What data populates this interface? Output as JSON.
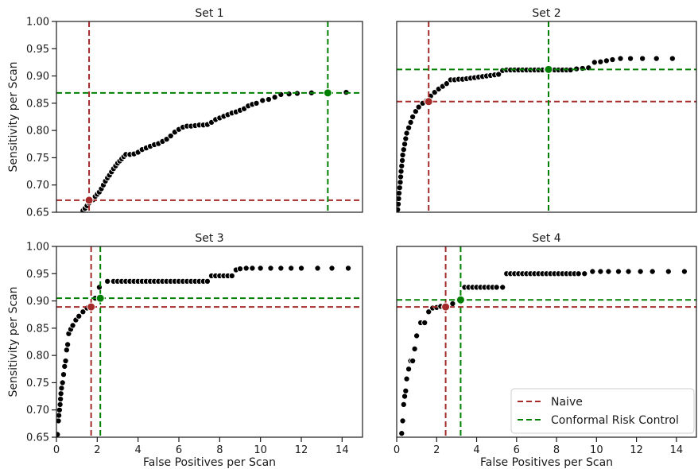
{
  "chart_data": [
    {
      "type": "scatter",
      "title": "Set 1",
      "ylabel": "Sensitivity per Scan",
      "xlabel": "",
      "xlim": [
        0,
        15
      ],
      "ylim": [
        0.65,
        1.0
      ],
      "xticks": [],
      "yticks": [
        "0.65",
        "0.70",
        "0.75",
        "0.80",
        "0.85",
        "0.90",
        "0.95",
        "1.00"
      ],
      "points": [
        [
          1.3,
          0.653
        ],
        [
          1.4,
          0.657
        ],
        [
          1.5,
          0.662
        ],
        [
          1.6,
          0.667
        ],
        [
          1.8,
          0.673
        ],
        [
          1.9,
          0.679
        ],
        [
          2.0,
          0.683
        ],
        [
          2.1,
          0.687
        ],
        [
          2.2,
          0.693
        ],
        [
          2.3,
          0.7
        ],
        [
          2.4,
          0.707
        ],
        [
          2.5,
          0.713
        ],
        [
          2.6,
          0.718
        ],
        [
          2.7,
          0.724
        ],
        [
          2.8,
          0.73
        ],
        [
          2.9,
          0.735
        ],
        [
          3.0,
          0.74
        ],
        [
          3.1,
          0.744
        ],
        [
          3.2,
          0.748
        ],
        [
          3.3,
          0.752
        ],
        [
          3.4,
          0.756
        ],
        [
          3.6,
          0.756
        ],
        [
          3.8,
          0.757
        ],
        [
          4.0,
          0.76
        ],
        [
          4.2,
          0.765
        ],
        [
          4.4,
          0.768
        ],
        [
          4.6,
          0.771
        ],
        [
          4.8,
          0.774
        ],
        [
          5.0,
          0.776
        ],
        [
          5.2,
          0.78
        ],
        [
          5.4,
          0.784
        ],
        [
          5.6,
          0.79
        ],
        [
          5.8,
          0.797
        ],
        [
          6.0,
          0.802
        ],
        [
          6.2,
          0.806
        ],
        [
          6.4,
          0.808
        ],
        [
          6.6,
          0.808
        ],
        [
          6.8,
          0.809
        ],
        [
          7.0,
          0.81
        ],
        [
          7.2,
          0.81
        ],
        [
          7.4,
          0.811
        ],
        [
          7.6,
          0.815
        ],
        [
          7.8,
          0.82
        ],
        [
          8.0,
          0.823
        ],
        [
          8.2,
          0.826
        ],
        [
          8.4,
          0.829
        ],
        [
          8.6,
          0.832
        ],
        [
          8.8,
          0.834
        ],
        [
          9.0,
          0.837
        ],
        [
          9.2,
          0.84
        ],
        [
          9.4,
          0.845
        ],
        [
          9.6,
          0.848
        ],
        [
          9.8,
          0.85
        ],
        [
          10.1,
          0.855
        ],
        [
          10.4,
          0.857
        ],
        [
          10.7,
          0.861
        ],
        [
          11.0,
          0.866
        ],
        [
          11.4,
          0.867
        ],
        [
          11.8,
          0.868
        ],
        [
          12.5,
          0.869
        ],
        [
          14.2,
          0.87
        ]
      ],
      "naive": {
        "x": 1.6,
        "y": 0.672
      },
      "crc": {
        "x": 13.3,
        "y": 0.869
      }
    },
    {
      "type": "scatter",
      "title": "Set 2",
      "ylabel": "",
      "xlabel": "",
      "xlim": [
        0,
        15
      ],
      "ylim": [
        0.65,
        1.0
      ],
      "xticks": [],
      "yticks": [],
      "points": [
        [
          0.05,
          0.655
        ],
        [
          0.08,
          0.665
        ],
        [
          0.1,
          0.675
        ],
        [
          0.12,
          0.685
        ],
        [
          0.15,
          0.695
        ],
        [
          0.18,
          0.705
        ],
        [
          0.2,
          0.715
        ],
        [
          0.22,
          0.725
        ],
        [
          0.25,
          0.735
        ],
        [
          0.28,
          0.745
        ],
        [
          0.3,
          0.755
        ],
        [
          0.35,
          0.765
        ],
        [
          0.4,
          0.775
        ],
        [
          0.45,
          0.785
        ],
        [
          0.5,
          0.795
        ],
        [
          0.6,
          0.805
        ],
        [
          0.7,
          0.815
        ],
        [
          0.8,
          0.825
        ],
        [
          0.95,
          0.835
        ],
        [
          1.1,
          0.843
        ],
        [
          1.3,
          0.85
        ],
        [
          1.5,
          0.855
        ],
        [
          1.7,
          0.863
        ],
        [
          1.9,
          0.87
        ],
        [
          2.1,
          0.876
        ],
        [
          2.3,
          0.881
        ],
        [
          2.5,
          0.886
        ],
        [
          2.7,
          0.893
        ],
        [
          2.9,
          0.893
        ],
        [
          3.1,
          0.894
        ],
        [
          3.3,
          0.894
        ],
        [
          3.5,
          0.895
        ],
        [
          3.7,
          0.896
        ],
        [
          3.9,
          0.897
        ],
        [
          4.1,
          0.898
        ],
        [
          4.3,
          0.899
        ],
        [
          4.5,
          0.9
        ],
        [
          4.7,
          0.901
        ],
        [
          4.9,
          0.902
        ],
        [
          5.1,
          0.903
        ],
        [
          5.3,
          0.91
        ],
        [
          5.5,
          0.911
        ],
        [
          5.7,
          0.911
        ],
        [
          5.9,
          0.911
        ],
        [
          6.1,
          0.911
        ],
        [
          6.3,
          0.911
        ],
        [
          6.5,
          0.911
        ],
        [
          6.7,
          0.911
        ],
        [
          6.9,
          0.911
        ],
        [
          7.1,
          0.911
        ],
        [
          7.3,
          0.911
        ],
        [
          7.5,
          0.911
        ],
        [
          7.7,
          0.911
        ],
        [
          7.9,
          0.911
        ],
        [
          8.1,
          0.911
        ],
        [
          8.3,
          0.911
        ],
        [
          8.5,
          0.911
        ],
        [
          8.7,
          0.911
        ],
        [
          9.0,
          0.913
        ],
        [
          9.3,
          0.914
        ],
        [
          9.6,
          0.915
        ],
        [
          9.9,
          0.925
        ],
        [
          10.2,
          0.926
        ],
        [
          10.5,
          0.928
        ],
        [
          10.8,
          0.93
        ],
        [
          11.2,
          0.932
        ],
        [
          11.7,
          0.932
        ],
        [
          12.3,
          0.932
        ],
        [
          13.0,
          0.932
        ],
        [
          13.8,
          0.932
        ]
      ],
      "naive": {
        "x": 1.6,
        "y": 0.853
      },
      "crc": {
        "x": 7.6,
        "y": 0.912
      }
    },
    {
      "type": "scatter",
      "title": "Set 3",
      "ylabel": "Sensitivity per Scan",
      "xlabel": "False Positives per Scan",
      "xlim": [
        0,
        15
      ],
      "ylim": [
        0.65,
        1.0
      ],
      "xticks": [
        "0",
        "2",
        "4",
        "6",
        "8",
        "10",
        "12",
        "14"
      ],
      "yticks": [
        "0.65",
        "0.70",
        "0.75",
        "0.80",
        "0.85",
        "0.90",
        "0.95",
        "1.00"
      ],
      "points": [
        [
          0.05,
          0.655
        ],
        [
          0.1,
          0.68
        ],
        [
          0.12,
          0.69
        ],
        [
          0.15,
          0.7
        ],
        [
          0.18,
          0.71
        ],
        [
          0.2,
          0.72
        ],
        [
          0.22,
          0.73
        ],
        [
          0.25,
          0.74
        ],
        [
          0.3,
          0.75
        ],
        [
          0.35,
          0.765
        ],
        [
          0.4,
          0.78
        ],
        [
          0.45,
          0.79
        ],
        [
          0.5,
          0.81
        ],
        [
          0.55,
          0.82
        ],
        [
          0.6,
          0.84
        ],
        [
          0.7,
          0.848
        ],
        [
          0.8,
          0.855
        ],
        [
          0.95,
          0.865
        ],
        [
          1.1,
          0.872
        ],
        [
          1.3,
          0.88
        ],
        [
          1.5,
          0.887
        ],
        [
          1.7,
          0.89
        ],
        [
          1.9,
          0.905
        ],
        [
          2.1,
          0.925
        ],
        [
          2.5,
          0.936
        ],
        [
          2.8,
          0.936
        ],
        [
          3.0,
          0.936
        ],
        [
          3.2,
          0.936
        ],
        [
          3.4,
          0.936
        ],
        [
          3.6,
          0.936
        ],
        [
          3.8,
          0.936
        ],
        [
          4.0,
          0.936
        ],
        [
          4.2,
          0.936
        ],
        [
          4.4,
          0.936
        ],
        [
          4.6,
          0.936
        ],
        [
          4.8,
          0.936
        ],
        [
          5.0,
          0.936
        ],
        [
          5.2,
          0.936
        ],
        [
          5.4,
          0.936
        ],
        [
          5.6,
          0.936
        ],
        [
          5.8,
          0.936
        ],
        [
          6.0,
          0.936
        ],
        [
          6.2,
          0.936
        ],
        [
          6.4,
          0.936
        ],
        [
          6.6,
          0.936
        ],
        [
          6.8,
          0.936
        ],
        [
          7.0,
          0.936
        ],
        [
          7.2,
          0.936
        ],
        [
          7.4,
          0.936
        ],
        [
          7.6,
          0.946
        ],
        [
          7.8,
          0.946
        ],
        [
          8.0,
          0.946
        ],
        [
          8.2,
          0.946
        ],
        [
          8.4,
          0.946
        ],
        [
          8.6,
          0.946
        ],
        [
          8.8,
          0.957
        ],
        [
          9.0,
          0.959
        ],
        [
          9.3,
          0.96
        ],
        [
          9.6,
          0.96
        ],
        [
          10.0,
          0.96
        ],
        [
          10.5,
          0.96
        ],
        [
          11.0,
          0.96
        ],
        [
          11.5,
          0.96
        ],
        [
          12.0,
          0.96
        ],
        [
          12.8,
          0.96
        ],
        [
          13.5,
          0.96
        ],
        [
          14.3,
          0.96
        ]
      ],
      "naive": {
        "x": 1.7,
        "y": 0.889
      },
      "crc": {
        "x": 2.15,
        "y": 0.905
      }
    },
    {
      "type": "scatter",
      "title": "Set 4",
      "ylabel": "",
      "xlabel": "False Positives per Scan",
      "xlim": [
        0,
        15
      ],
      "ylim": [
        0.65,
        1.0
      ],
      "xticks": [
        "0",
        "2",
        "4",
        "6",
        "8",
        "10",
        "12",
        "14"
      ],
      "yticks": [],
      "points": [
        [
          0.25,
          0.657
        ],
        [
          0.3,
          0.68
        ],
        [
          0.35,
          0.71
        ],
        [
          0.4,
          0.725
        ],
        [
          0.45,
          0.735
        ],
        [
          0.5,
          0.757
        ],
        [
          0.6,
          0.775
        ],
        [
          0.7,
          0.79
        ],
        [
          0.8,
          0.79
        ],
        [
          0.9,
          0.812
        ],
        [
          1.0,
          0.836
        ],
        [
          1.2,
          0.86
        ],
        [
          1.4,
          0.86
        ],
        [
          1.6,
          0.88
        ],
        [
          1.8,
          0.887
        ],
        [
          2.0,
          0.888
        ],
        [
          2.2,
          0.89
        ],
        [
          2.5,
          0.89
        ],
        [
          2.8,
          0.895
        ],
        [
          3.1,
          0.902
        ],
        [
          3.4,
          0.925
        ],
        [
          3.6,
          0.925
        ],
        [
          3.8,
          0.925
        ],
        [
          4.0,
          0.925
        ],
        [
          4.2,
          0.925
        ],
        [
          4.4,
          0.925
        ],
        [
          4.6,
          0.925
        ],
        [
          4.8,
          0.925
        ],
        [
          5.0,
          0.925
        ],
        [
          5.3,
          0.925
        ],
        [
          5.5,
          0.95
        ],
        [
          5.7,
          0.95
        ],
        [
          5.9,
          0.95
        ],
        [
          6.1,
          0.95
        ],
        [
          6.3,
          0.95
        ],
        [
          6.5,
          0.95
        ],
        [
          6.7,
          0.95
        ],
        [
          6.9,
          0.95
        ],
        [
          7.1,
          0.95
        ],
        [
          7.3,
          0.95
        ],
        [
          7.5,
          0.95
        ],
        [
          7.7,
          0.95
        ],
        [
          7.9,
          0.95
        ],
        [
          8.1,
          0.95
        ],
        [
          8.3,
          0.95
        ],
        [
          8.5,
          0.95
        ],
        [
          8.7,
          0.95
        ],
        [
          8.9,
          0.95
        ],
        [
          9.1,
          0.95
        ],
        [
          9.4,
          0.95
        ],
        [
          9.8,
          0.954
        ],
        [
          10.2,
          0.954
        ],
        [
          10.6,
          0.954
        ],
        [
          11.1,
          0.954
        ],
        [
          11.6,
          0.954
        ],
        [
          12.2,
          0.954
        ],
        [
          12.8,
          0.954
        ],
        [
          13.6,
          0.954
        ],
        [
          14.4,
          0.954
        ]
      ],
      "naive": {
        "x": 2.45,
        "y": 0.889
      },
      "crc": {
        "x": 3.2,
        "y": 0.902
      }
    }
  ],
  "legend": {
    "position": "lower-right",
    "naive_label": "Naive",
    "crc_label": "Conformal Risk Control"
  },
  "colors": {
    "naive": "#a52a2a",
    "crc": "#008000",
    "points": "#000000"
  }
}
